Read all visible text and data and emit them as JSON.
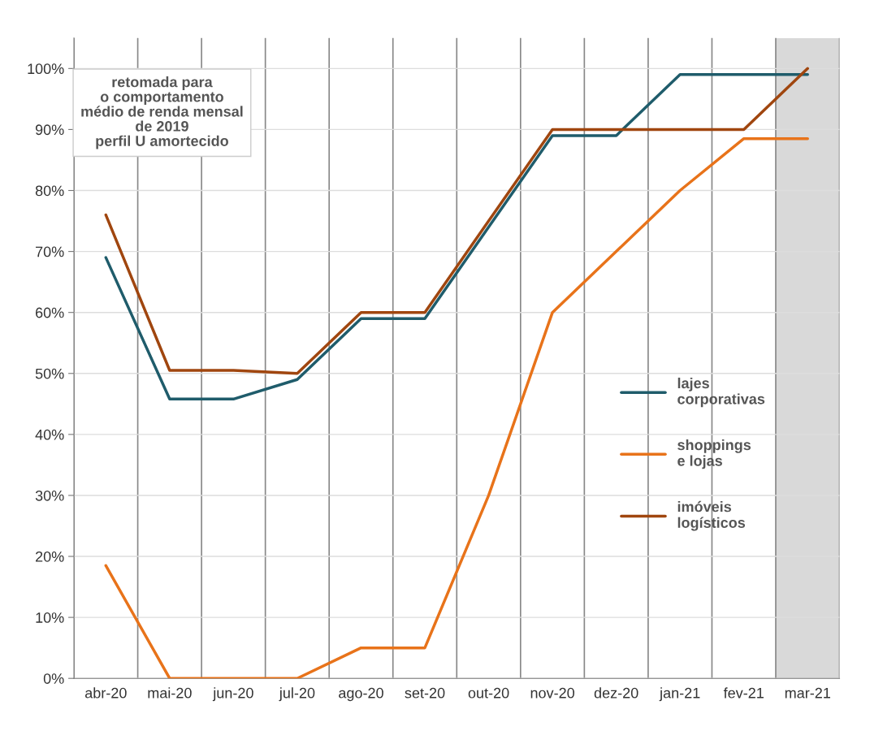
{
  "chart_data": {
    "type": "line",
    "title": "retomada para\no comportamento\nmédio de renda mensal\nde 2019\nperfil U amortecido",
    "categories": [
      "abr-20",
      "mai-20",
      "jun-20",
      "jul-20",
      "ago-20",
      "set-20",
      "out-20",
      "nov-20",
      "dez-20",
      "jan-21",
      "fev-21",
      "mar-21"
    ],
    "series": [
      {
        "name": "lajes\ncorporativas",
        "color": "#1f5c6b",
        "values": [
          69,
          45.8,
          45.8,
          49,
          59,
          59,
          74,
          89,
          89,
          99,
          99,
          99
        ]
      },
      {
        "name": "shoppings\ne lojas",
        "color": "#e8731a",
        "values": [
          18.5,
          0,
          0,
          0,
          5,
          5,
          30,
          60,
          70,
          80,
          88.5,
          88.5
        ]
      },
      {
        "name": "imóveis\nlogísticos",
        "color": "#a0460f",
        "values": [
          76,
          50.5,
          50.5,
          50,
          60,
          60,
          75,
          90,
          90,
          90,
          90,
          100
        ]
      }
    ],
    "ylim": [
      0,
      105
    ],
    "yticks": [
      {
        "value": 0,
        "label": "0%"
      },
      {
        "value": 10,
        "label": "10%"
      },
      {
        "value": 20,
        "label": "20%"
      },
      {
        "value": 30,
        "label": "30%"
      },
      {
        "value": 40,
        "label": "40%"
      },
      {
        "value": 50,
        "label": "50%"
      },
      {
        "value": 60,
        "label": "60%"
      },
      {
        "value": 70,
        "label": "70%"
      },
      {
        "value": 80,
        "label": "80%"
      },
      {
        "value": 90,
        "label": "90%"
      },
      {
        "value": 100,
        "label": "100%"
      }
    ],
    "bands": [
      {
        "axis": "x",
        "from": "mar-21",
        "to": "mar-21",
        "color": "#d9d9d9"
      }
    ],
    "grid": true,
    "legend": "center right",
    "marker": "none",
    "line_style": "solid"
  }
}
